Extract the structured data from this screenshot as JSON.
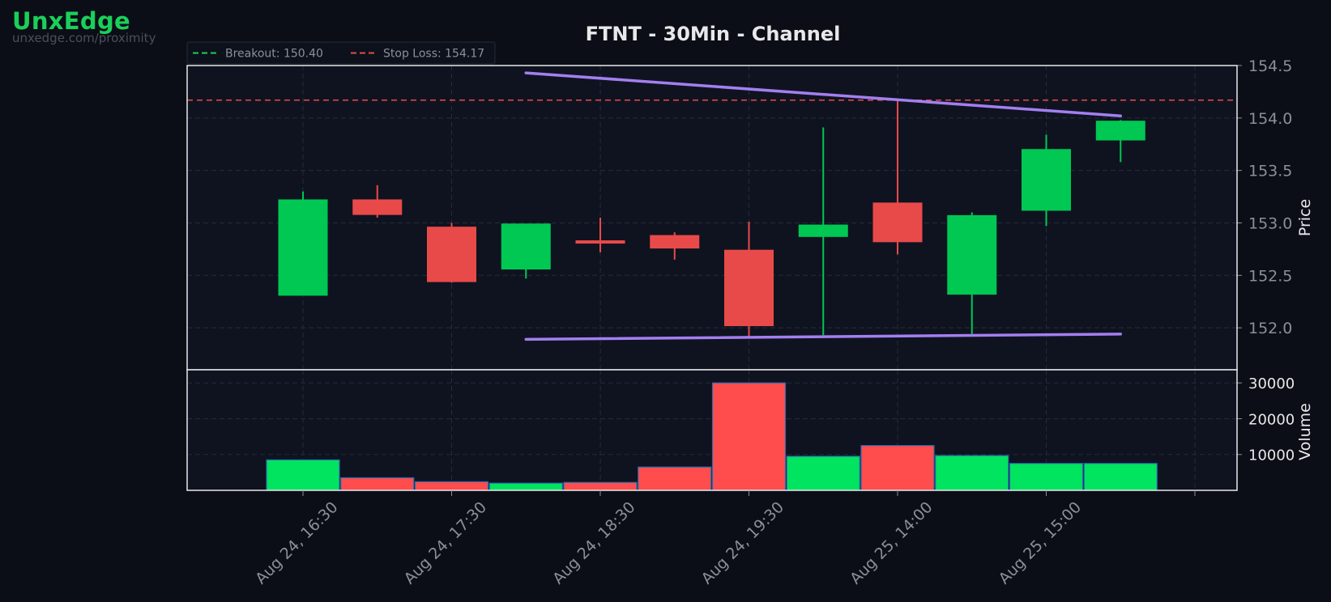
{
  "brand": {
    "name": "UnxEdge",
    "url": "unxedge.com/proximity"
  },
  "colors": {
    "up": "#00c853",
    "down": "#e84a4a",
    "volume_up": "#00e45f",
    "volume_down": "#ff4d4d",
    "channel": "#a37ff0",
    "breakout": "#1ad05a",
    "stop_loss": "#e84a4a",
    "panel_bg": "#0f1320",
    "page_bg": "#0b0e16",
    "grid": "#262b38",
    "tick_text": "#8a8f9c",
    "label_text": "#e8e8ea"
  },
  "chart_data": {
    "type": "candlestick",
    "title": "FTNT - 30Min - Channel",
    "ylabel": "Price",
    "volume_label": "Volume",
    "ylim": [
      151.6,
      154.5
    ],
    "volume_ylim": [
      0,
      30500
    ],
    "y_ticks": [
      152.0,
      152.5,
      153.0,
      153.5,
      154.0,
      154.5
    ],
    "volume_ticks": [
      10000,
      20000,
      30000
    ],
    "x_tick_labels": [
      {
        "index": 0,
        "label": "Aug 24, 16:30"
      },
      {
        "index": 2,
        "label": "Aug 24, 17:30"
      },
      {
        "index": 4,
        "label": "Aug 24, 18:30"
      },
      {
        "index": 6,
        "label": "Aug 24, 19:30"
      },
      {
        "index": 8,
        "label": "Aug 25, 14:00"
      },
      {
        "index": 10,
        "label": "Aug 25, 15:00"
      },
      {
        "index": 12,
        "label": ""
      }
    ],
    "candles": [
      {
        "open": 152.31,
        "high": 153.3,
        "low": 152.31,
        "close": 153.22,
        "volume": 8500
      },
      {
        "open": 153.22,
        "high": 153.36,
        "low": 153.05,
        "close": 153.08,
        "volume": 3500
      },
      {
        "open": 152.96,
        "high": 153.0,
        "low": 152.43,
        "close": 152.44,
        "volume": 2400
      },
      {
        "open": 152.56,
        "high": 152.99,
        "low": 152.47,
        "close": 152.99,
        "volume": 2000
      },
      {
        "open": 152.83,
        "high": 153.05,
        "low": 152.72,
        "close": 152.81,
        "volume": 2200
      },
      {
        "open": 152.88,
        "high": 152.91,
        "low": 152.65,
        "close": 152.76,
        "volume": 6500
      },
      {
        "open": 152.74,
        "high": 153.01,
        "low": 151.92,
        "close": 152.02,
        "volume": 30000
      },
      {
        "open": 152.87,
        "high": 153.91,
        "low": 151.93,
        "close": 152.98,
        "volume": 9500
      },
      {
        "open": 153.19,
        "high": 154.17,
        "low": 152.7,
        "close": 152.82,
        "volume": 12500
      },
      {
        "open": 152.32,
        "high": 153.1,
        "low": 151.94,
        "close": 153.07,
        "volume": 9700
      },
      {
        "open": 153.12,
        "high": 153.84,
        "low": 152.97,
        "close": 153.7,
        "volume": 7500
      },
      {
        "open": 153.79,
        "high": 153.98,
        "low": 153.58,
        "close": 153.97,
        "volume": 7500
      }
    ],
    "channel_upper": {
      "from": {
        "index": 3,
        "value": 154.43
      },
      "to": {
        "index": 11,
        "value": 154.02
      }
    },
    "channel_lower": {
      "from": {
        "index": 3,
        "value": 151.89
      },
      "to": {
        "index": 11,
        "value": 151.94
      }
    },
    "legend": {
      "position": "top-left",
      "items": [
        {
          "name": "Breakout: 150.40",
          "color": "#1ad05a",
          "style": "dashed"
        },
        {
          "name": "Stop Loss: 154.17",
          "color": "#e84a4a",
          "style": "dashed"
        }
      ]
    },
    "levels": {
      "breakout": 150.4,
      "stop_loss": 154.17
    },
    "grid": true
  }
}
